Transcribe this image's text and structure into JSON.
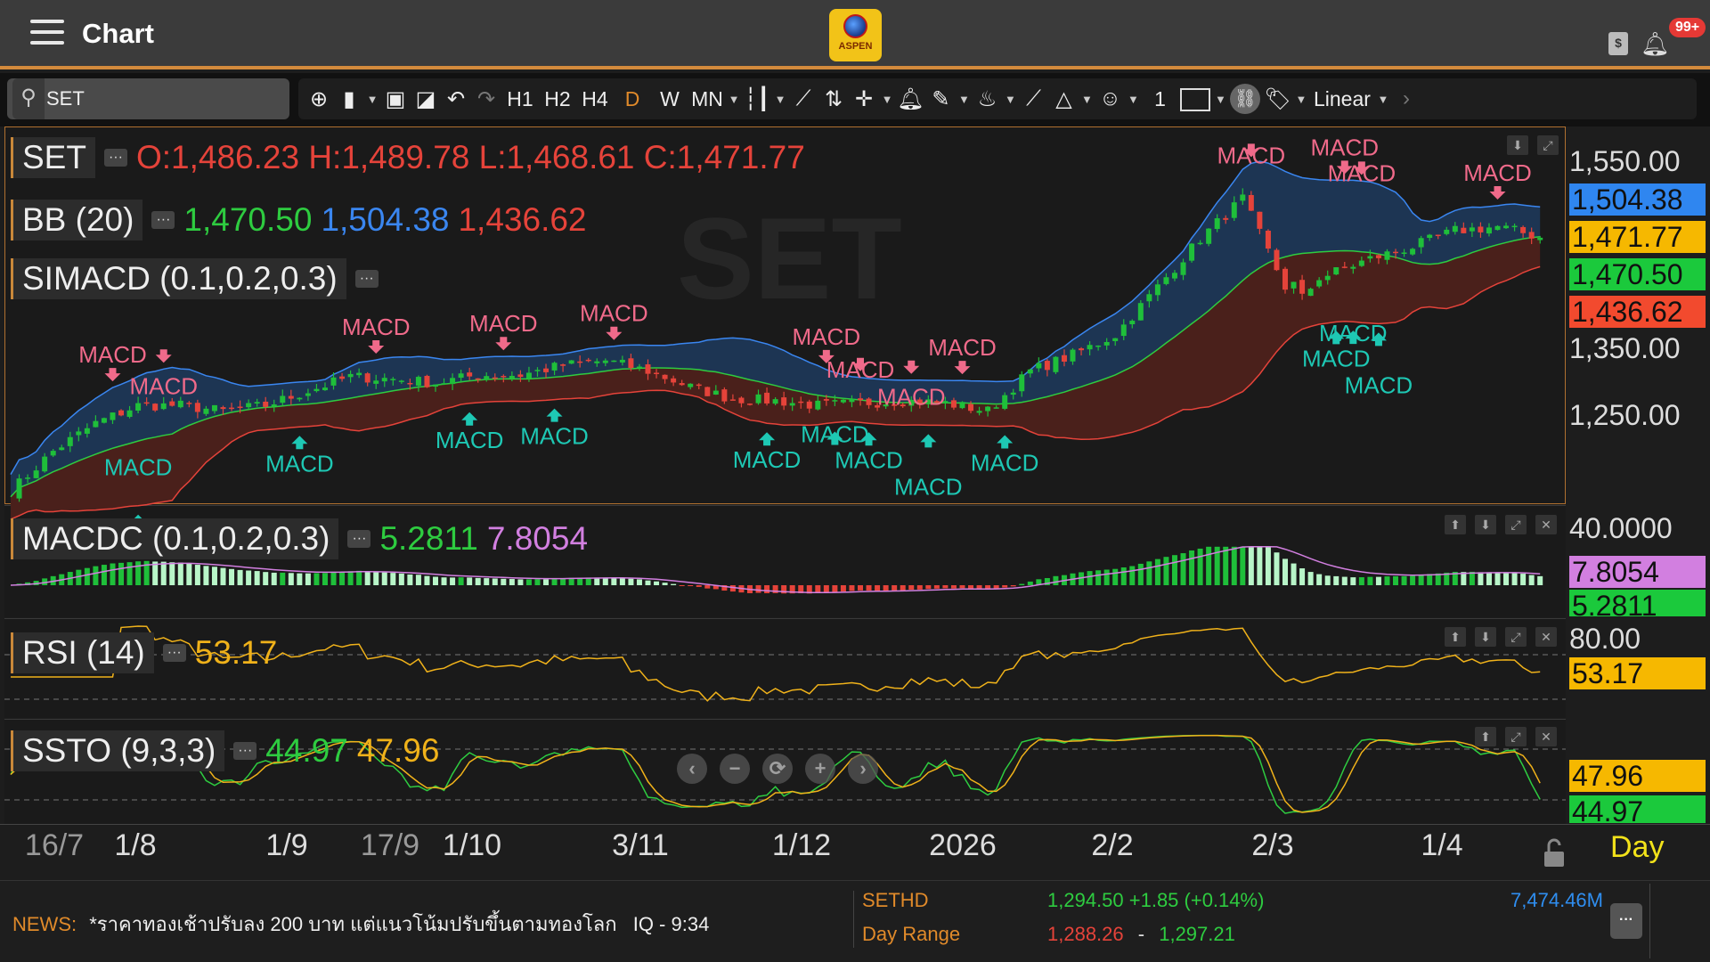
{
  "header": {
    "title": "Chart",
    "logo_text": "ASPEN",
    "notification_badge": "99+",
    "menu_icon": "hamburger-icon",
    "wallet_icon": "dollar-book-icon",
    "bell_icon": "bell-icon"
  },
  "search": {
    "value": "SET",
    "placeholder": ""
  },
  "toolbar": {
    "timeframes": [
      "H1",
      "H2",
      "H4",
      "D",
      "W",
      "MN"
    ],
    "active_timeframe": "D",
    "line_width": "1",
    "scale": "Linear",
    "icons": [
      "add-icon",
      "new-file-icon",
      "templates-icon",
      "open-chart-icon",
      "undo-icon",
      "redo-icon",
      "candle-type-icon",
      "line-tool-icon",
      "signal-icon",
      "crosshair-icon",
      "alert-bell-icon",
      "pencil-icon",
      "fill-icon",
      "ruler-icon",
      "shapes-icon",
      "emoji-icon",
      "color-box-icon",
      "link-icon",
      "tag-icon",
      "chevron-right-icon"
    ]
  },
  "main_panel": {
    "symbol": "SET",
    "watermark": "SET",
    "ohlc": "O:1,486.23 H:1,489.78 L:1,468.61 C:1,471.77",
    "bb_label": "BB (20)",
    "bb_mid": "1,470.50",
    "bb_upper": "1,504.38",
    "bb_lower": "1,436.62",
    "simacd_label": "SIMACD (0.1,0.2,0.3)"
  },
  "macd_panel": {
    "label": "MACDC (0.1,0.2,0.3)",
    "value1": "5.2811",
    "value2": "7.8054"
  },
  "rsi_panel": {
    "label": "RSI (14)",
    "value": "53.17"
  },
  "ssto_panel": {
    "label": "SSTO (9,3,3)",
    "k": "44.97",
    "d": "47.96"
  },
  "price_axis": {
    "ticks": [
      "1,550.00",
      "1,350.00",
      "1,250.00"
    ],
    "tags": {
      "upper": "1,504.38",
      "close": "1,471.77",
      "mid": "1,470.50",
      "lower": "1,436.62"
    },
    "macd_tick": "40.0000",
    "macd_tags": [
      "7.8054",
      "5.2811"
    ],
    "rsi_tick": "80.00",
    "rsi_tag": "53.17",
    "ssto_tags": [
      "47.96",
      "44.97"
    ]
  },
  "date_axis": {
    "labels": [
      "16/7",
      "1/8",
      "1/9",
      "17/9",
      "1/10",
      "3/11",
      "1/12",
      "2026",
      "2/2",
      "2/3",
      "1/4"
    ],
    "period": "Day"
  },
  "news": {
    "prefix": "NEWS:",
    "headline": "*ราคาทองเช้าปรับลง 200 บาท แต่แนวโน้มปรับขึ้นตามทองโลก",
    "source_time": "IQ - 9:34"
  },
  "ticker": {
    "symbol": "SETHD",
    "quote": "1,294.50 +1.85 (+0.14%)",
    "range_label": "Day Range",
    "range_low": "1,288.26",
    "range_sep": "-",
    "range_high": "1,297.21",
    "volume": "7,474.46M"
  },
  "colors": {
    "up": "#1fbf3a",
    "down": "#e5433a",
    "bb_upper": "#3a86f0",
    "bb_mid": "#2ecc40",
    "bb_lower": "#e5433a",
    "accent": "#d38a3c",
    "sell_marker": "#f06a8a",
    "buy_marker": "#1ec8b4"
  },
  "chart_data": {
    "type": "candlestick",
    "bars": 180,
    "close_every_5_bars": [
      1155,
      1205,
      1240,
      1262,
      1262,
      1255,
      1262,
      1280,
      1298,
      1295,
      1290,
      1300,
      1300,
      1312,
      1318,
      1305,
      1285,
      1270,
      1268,
      1262,
      1265,
      1268,
      1265,
      1255,
      1305,
      1325,
      1350,
      1410,
      1470,
      1520,
      1410,
      1425,
      1445,
      1460,
      1480,
      1485,
      1472
    ],
    "ylim": [
      1130,
      1570
    ],
    "marker_label": "MACD",
    "sell_markers": [
      12,
      18,
      43,
      58,
      71,
      96,
      100,
      106,
      112,
      146,
      157,
      159,
      175
    ],
    "buy_markers": [
      15,
      34,
      54,
      64,
      89,
      97,
      101,
      108,
      117,
      156,
      158,
      161
    ]
  }
}
